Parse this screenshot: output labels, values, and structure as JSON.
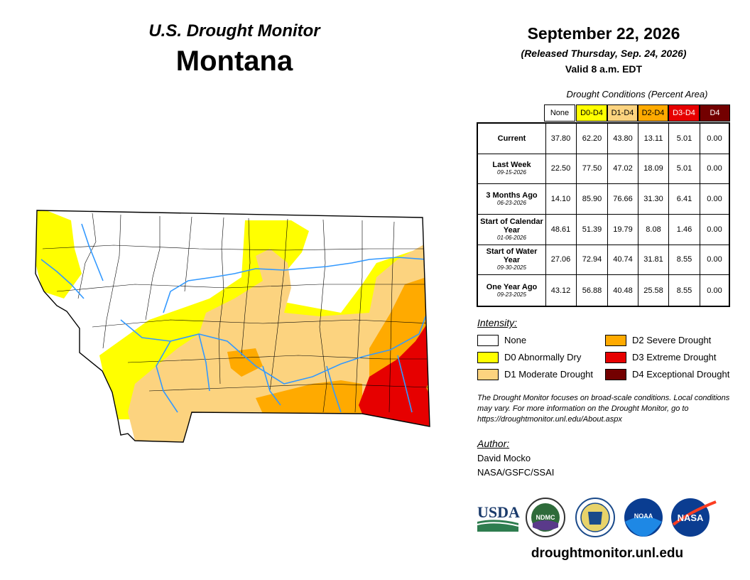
{
  "header": {
    "monitor_title": "U.S. Drought Monitor",
    "state": "Montana",
    "date": "September 22, 2026",
    "released": "(Released Thursday, Sep. 24, 2026)",
    "valid": "Valid 8 a.m. EDT"
  },
  "table": {
    "caption": "Drought Conditions (Percent Area)",
    "columns": [
      {
        "label": "None",
        "color": "#ffffff",
        "text_color": "#000000"
      },
      {
        "label": "D0-D4",
        "color": "#ffff00",
        "text_color": "#000000"
      },
      {
        "label": "D1-D4",
        "color": "#fcd37f",
        "text_color": "#000000"
      },
      {
        "label": "D2-D4",
        "color": "#ffaa00",
        "text_color": "#000000"
      },
      {
        "label": "D3-D4",
        "color": "#e60000",
        "text_color": "#ffffff"
      },
      {
        "label": "D4",
        "color": "#730000",
        "text_color": "#ffffff"
      }
    ],
    "rows": [
      {
        "label": "Current",
        "sublabel": "",
        "values": [
          "37.80",
          "62.20",
          "43.80",
          "13.11",
          "5.01",
          "0.00"
        ]
      },
      {
        "label": "Last Week",
        "sublabel": "09-15-2026",
        "values": [
          "22.50",
          "77.50",
          "47.02",
          "18.09",
          "5.01",
          "0.00"
        ]
      },
      {
        "label": "3 Months Ago",
        "sublabel": "06-23-2026",
        "values": [
          "14.10",
          "85.90",
          "76.66",
          "31.30",
          "6.41",
          "0.00"
        ]
      },
      {
        "label": "Start of Calendar Year",
        "sublabel": "01-06-2026",
        "values": [
          "48.61",
          "51.39",
          "19.79",
          "8.08",
          "1.46",
          "0.00"
        ]
      },
      {
        "label": "Start of Water Year",
        "sublabel": "09-30-2025",
        "values": [
          "27.06",
          "72.94",
          "40.74",
          "31.81",
          "8.55",
          "0.00"
        ]
      },
      {
        "label": "One Year Ago",
        "sublabel": "09-23-2025",
        "values": [
          "43.12",
          "56.88",
          "40.48",
          "25.58",
          "8.55",
          "0.00"
        ]
      }
    ]
  },
  "legend": {
    "title": "Intensity:",
    "items": [
      {
        "label": "None",
        "color": "#ffffff"
      },
      {
        "label": "D0 Abnormally Dry",
        "color": "#ffff00"
      },
      {
        "label": "D1 Moderate Drought",
        "color": "#fcd37f"
      },
      {
        "label": "D2 Severe Drought",
        "color": "#ffaa00"
      },
      {
        "label": "D3 Extreme Drought",
        "color": "#e60000"
      },
      {
        "label": "D4 Exceptional Drought",
        "color": "#730000"
      }
    ]
  },
  "note": "The Drought Monitor focuses on broad-scale conditions. Local conditions may vary. For more information on the Drought Monitor, go to https://droughtmonitor.unl.edu/About.aspx",
  "author": {
    "title": "Author:",
    "name": "David Mocko",
    "org": "NASA/GSFC/SSAI"
  },
  "logos": [
    "USDA",
    "NDMC",
    "NOAA",
    "NASA"
  ],
  "url": "droughtmonitor.unl.edu",
  "map": {
    "river_color": "#3399ff",
    "boundary_color": "#000000"
  }
}
